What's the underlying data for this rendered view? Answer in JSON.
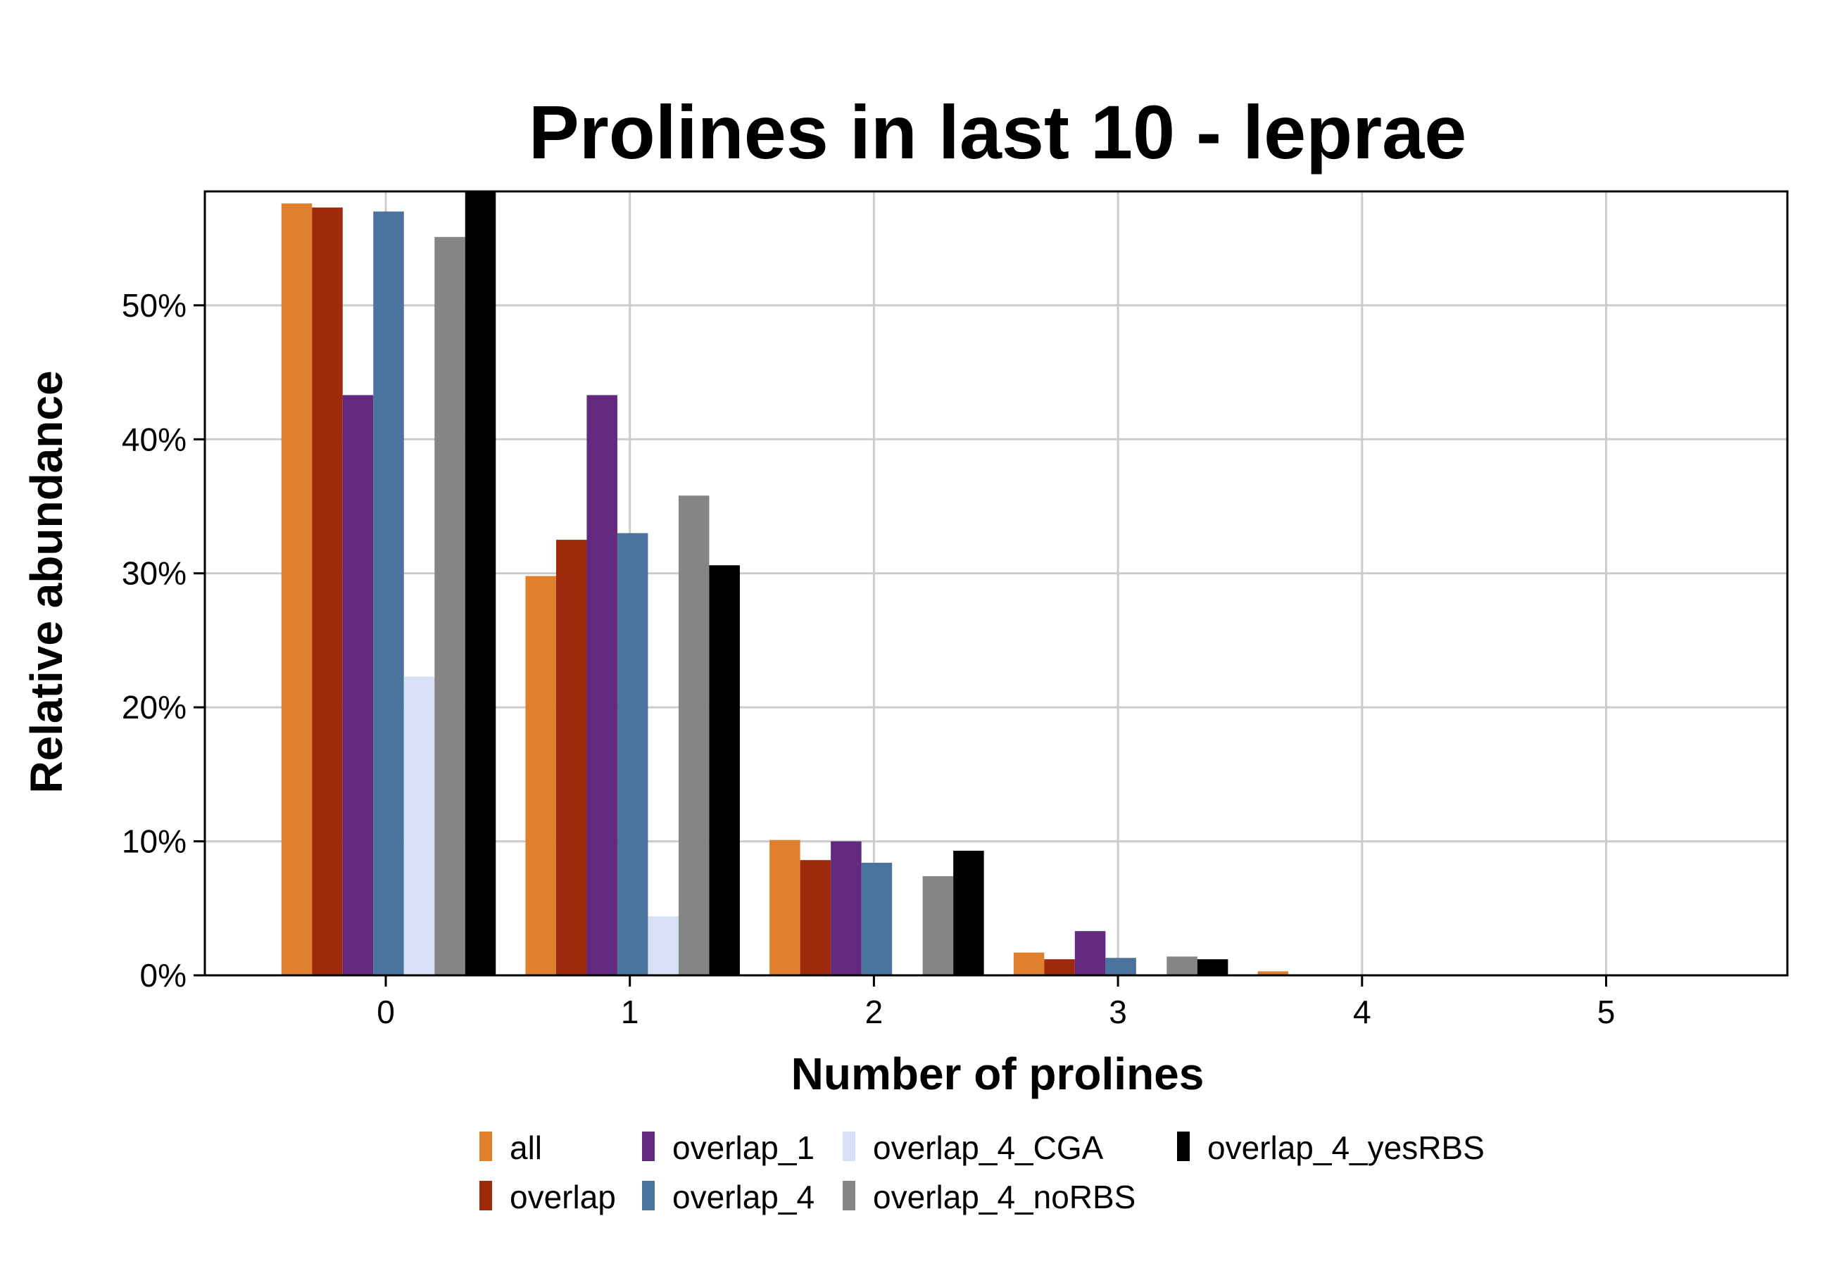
{
  "chart_data": {
    "type": "bar",
    "title": "Prolines in last 10 - leprae",
    "xlabel": "Number of prolines",
    "ylabel": "Relative abundance",
    "categories": [
      "0",
      "1",
      "2",
      "3",
      "4",
      "5"
    ],
    "ylim": [
      0,
      58.5
    ],
    "yticks": [
      0,
      10,
      20,
      30,
      40,
      50
    ],
    "ytick_labels": [
      "0%",
      "10%",
      "20%",
      "30%",
      "40%",
      "50%"
    ],
    "grid": true,
    "legend_position": "bottom",
    "series": [
      {
        "name": "all",
        "color": "#E07F2C",
        "values": [
          57.6,
          29.8,
          10.1,
          1.7,
          0.3,
          0.0
        ]
      },
      {
        "name": "overlap",
        "color": "#9E2A0C",
        "values": [
          57.3,
          32.5,
          8.6,
          1.2,
          0.0,
          0.0
        ]
      },
      {
        "name": "overlap_1",
        "color": "#62297E",
        "values": [
          43.3,
          43.3,
          10.0,
          3.3,
          0.0,
          0.0
        ]
      },
      {
        "name": "overlap_4",
        "color": "#4A739E",
        "values": [
          57.0,
          33.0,
          8.4,
          1.3,
          0.0,
          0.0
        ]
      },
      {
        "name": "overlap_4_CGA",
        "color": "#D8E0F5",
        "values": [
          22.3,
          4.4,
          0.0,
          0.0,
          0.0,
          0.0
        ]
      },
      {
        "name": "overlap_4_noRBS",
        "color": "#858585",
        "values": [
          55.1,
          35.8,
          7.4,
          1.4,
          0.0,
          0.0
        ]
      },
      {
        "name": "overlap_4_yesRBS",
        "color": "#000000",
        "values": [
          58.5,
          30.6,
          9.3,
          1.2,
          0.0,
          0.0
        ]
      }
    ]
  }
}
